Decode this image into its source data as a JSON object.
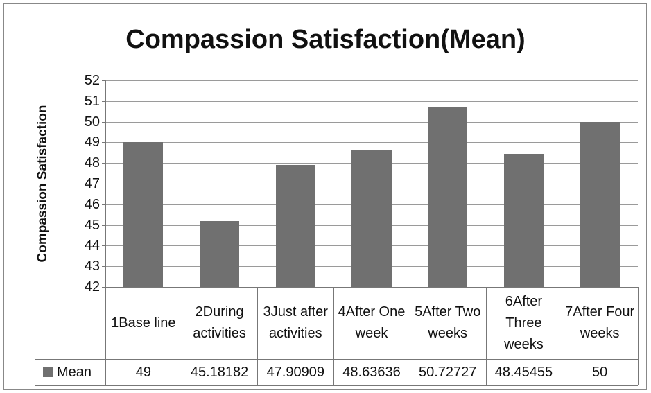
{
  "chart_data": {
    "type": "bar",
    "title": "Compassion Satisfaction(Mean)",
    "y_label": "Compassion Satisfaction",
    "categories": [
      "1Base line",
      "2During activities",
      "3Just after activities",
      "4After One week",
      "5After Two weeks",
      "6After Three weeks",
      "7After Four weeks"
    ],
    "series": [
      {
        "name": "Mean",
        "color": "#707070",
        "values": [
          49,
          45.18182,
          47.90909,
          48.63636,
          50.72727,
          48.45455,
          50
        ]
      }
    ],
    "ylim": [
      42,
      52
    ],
    "yticks": [
      42,
      43,
      44,
      45,
      46,
      47,
      48,
      49,
      50,
      51,
      52
    ],
    "grid": true,
    "data_table": true
  }
}
